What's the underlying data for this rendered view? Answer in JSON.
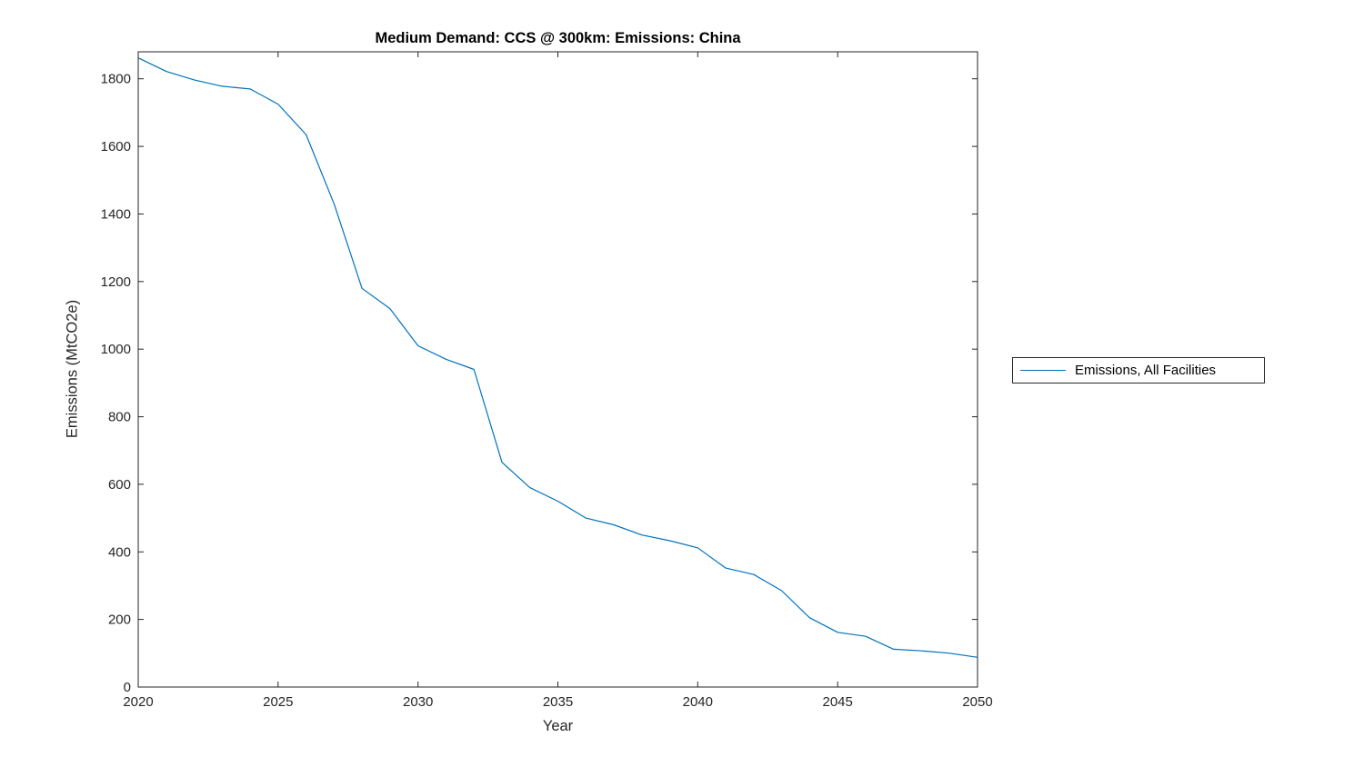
{
  "figure": {
    "background": "#ffffff",
    "axes_color": "#262626"
  },
  "chart_data": {
    "type": "line",
    "title": "Medium Demand: CCS @ 300km: Emissions: China",
    "xlabel": "Year",
    "ylabel": "Emissions (MtCO2e)",
    "xlim": [
      2020,
      2050
    ],
    "ylim": [
      0,
      1880
    ],
    "xticks": [
      2020,
      2025,
      2030,
      2035,
      2040,
      2045,
      2050
    ],
    "yticks": [
      0,
      200,
      400,
      600,
      800,
      1000,
      1200,
      1400,
      1600,
      1800
    ],
    "grid": false,
    "legend": {
      "position": "right-outside",
      "entries": [
        "Emissions, All Facilities"
      ]
    },
    "series": [
      {
        "name": "Emissions, All Facilities",
        "color": "#0072BD",
        "x": [
          2020,
          2021,
          2022,
          2023,
          2024,
          2025,
          2026,
          2027,
          2028,
          2029,
          2030,
          2031,
          2032,
          2033,
          2034,
          2035,
          2036,
          2037,
          2038,
          2039,
          2040,
          2041,
          2042,
          2043,
          2044,
          2045,
          2046,
          2047,
          2048,
          2049,
          2050
        ],
        "values": [
          1862,
          1822,
          1797,
          1778,
          1770,
          1725,
          1635,
          1430,
          1180,
          1120,
          1010,
          970,
          940,
          665,
          590,
          550,
          500,
          480,
          450,
          433,
          412,
          352,
          333,
          285,
          205,
          162,
          150,
          112,
          107,
          100,
          88
        ]
      }
    ]
  }
}
